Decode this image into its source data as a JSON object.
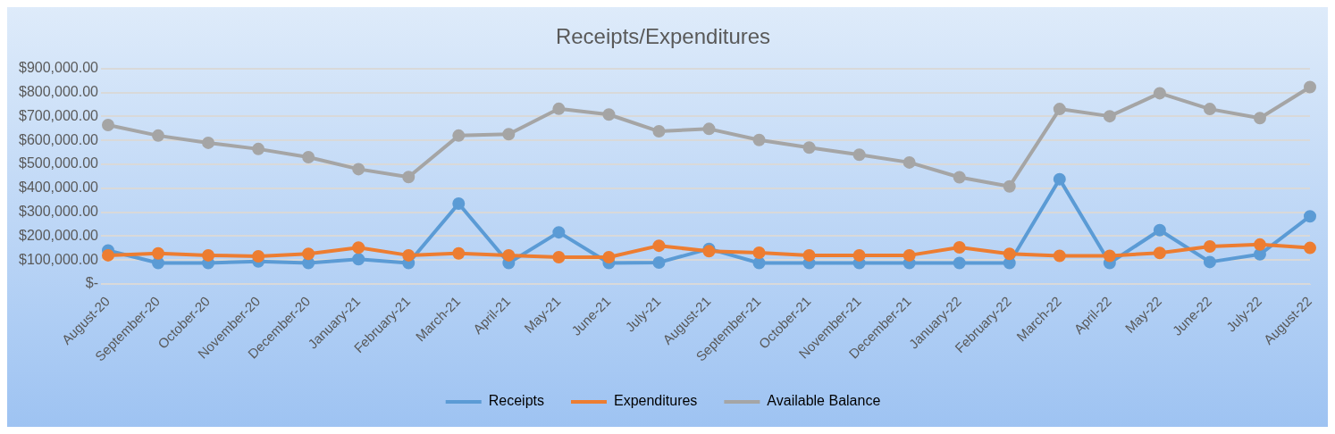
{
  "chart_data": {
    "type": "line",
    "title": "Receipts/Expenditures",
    "categories": [
      "August-20",
      "September-20",
      "October-20",
      "November-20",
      "December-20",
      "January-21",
      "February-21",
      "March-21",
      "April-21",
      "May-21",
      "June-21",
      "July-21",
      "August-21",
      "September-21",
      "October-21",
      "November-21",
      "December-21",
      "January-22",
      "February-22",
      "March-22",
      "April-22",
      "May-22",
      "June-22",
      "July-22",
      "August-22"
    ],
    "series": [
      {
        "name": "Receipts",
        "color": "#5b9bd5",
        "values": [
          140000,
          88000,
          88000,
          94000,
          88000,
          104000,
          88000,
          336000,
          88000,
          216000,
          88000,
          90000,
          147000,
          88000,
          88000,
          88000,
          88000,
          88000,
          88000,
          438000,
          88000,
          225000,
          92000,
          124000,
          283000
        ]
      },
      {
        "name": "Expenditures",
        "color": "#ed7d31",
        "values": [
          120000,
          128000,
          120000,
          116000,
          126000,
          152000,
          120000,
          128000,
          120000,
          112000,
          112000,
          160000,
          137000,
          131000,
          120000,
          120000,
          120000,
          153000,
          126000,
          118000,
          118000,
          130000,
          157000,
          165000,
          151000
        ]
      },
      {
        "name": "Available Balance",
        "color": "#a5a5a5",
        "values": [
          664000,
          620000,
          590000,
          564000,
          530000,
          480000,
          447000,
          620000,
          626000,
          732000,
          708000,
          638000,
          648000,
          602000,
          570000,
          540000,
          508000,
          446000,
          408000,
          731000,
          701000,
          797000,
          731000,
          693000,
          823000
        ]
      }
    ],
    "ylim": [
      0,
      900000
    ],
    "yticks": [
      {
        "value": 0,
        "label": "$-"
      },
      {
        "value": 100000,
        "label": "$100,000.00"
      },
      {
        "value": 200000,
        "label": "$200,000.00"
      },
      {
        "value": 300000,
        "label": "$300,000.00"
      },
      {
        "value": 400000,
        "label": "$400,000.00"
      },
      {
        "value": 500000,
        "label": "$500,000.00"
      },
      {
        "value": 600000,
        "label": "$600,000.00"
      },
      {
        "value": 700000,
        "label": "$700,000.00"
      },
      {
        "value": 800000,
        "label": "$800,000.00"
      },
      {
        "value": 900000,
        "label": "$900,000.00"
      }
    ],
    "grid": "y",
    "legend": "bottom",
    "marker": "circle",
    "line_style": "solid"
  }
}
